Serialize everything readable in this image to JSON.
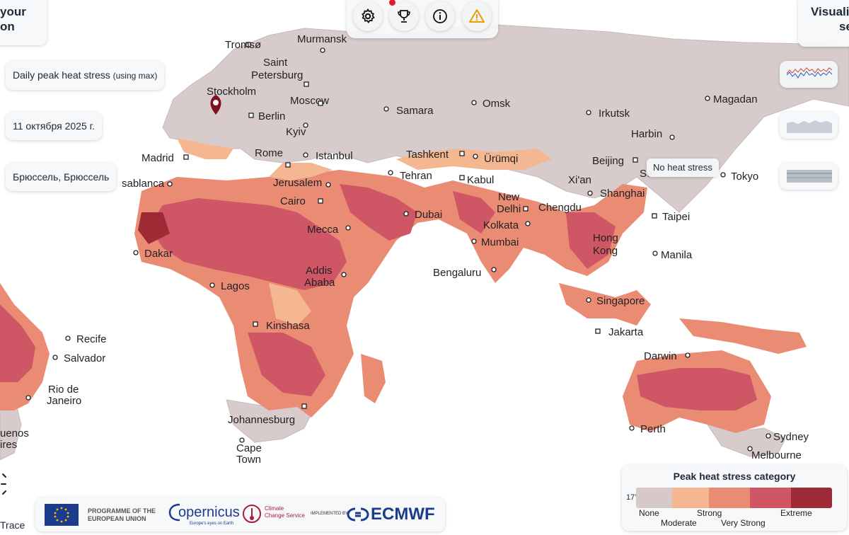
{
  "top_left_card": {
    "line1": "your",
    "line2": "on"
  },
  "top_right_card": {
    "line1": "Visuali",
    "line2": "se"
  },
  "layer_label": "Daily peak heat stress",
  "layer_sub": "(using max)",
  "date": "11 октября 2025 г.",
  "location": "Брюссель, Брюссель",
  "tooltip": "No heat stress",
  "top_buttons": [
    {
      "icon": "gear-icon"
    },
    {
      "icon": "trophy-icon"
    },
    {
      "icon": "info-icon"
    },
    {
      "icon": "warning-icon"
    }
  ],
  "cities": [
    {
      "name": "Tromsø"
    },
    {
      "name": "Murmansk"
    },
    {
      "name": "Saint"
    },
    {
      "name": "Petersburg"
    },
    {
      "name": "Stockholm"
    },
    {
      "name": "Moscow"
    },
    {
      "name": "Berlin"
    },
    {
      "name": "Kyiv"
    },
    {
      "name": "Samara"
    },
    {
      "name": "Omsk"
    },
    {
      "name": "Irkutsk"
    },
    {
      "name": "Magadan"
    },
    {
      "name": "Harbin"
    },
    {
      "name": "Madrid"
    },
    {
      "name": "Rome"
    },
    {
      "name": "Istanbul"
    },
    {
      "name": "Tashkent"
    },
    {
      "name": "Ürümqi"
    },
    {
      "name": "Beijing"
    },
    {
      "name": "Tokyo"
    },
    {
      "name": "Tehran"
    },
    {
      "name": "Kabul"
    },
    {
      "name": "Xi'an"
    },
    {
      "name": "Shanghai"
    },
    {
      "name": "Jerusalem"
    },
    {
      "name": "Cairo"
    },
    {
      "name": "Dubai"
    },
    {
      "name": "New"
    },
    {
      "name": "Delhi"
    },
    {
      "name": "Chengdu"
    },
    {
      "name": "Taipei"
    },
    {
      "name": "Mecca"
    },
    {
      "name": "Kolkata"
    },
    {
      "name": "Mumbai"
    },
    {
      "name": "Hong"
    },
    {
      "name": "Kong"
    },
    {
      "name": "Manila"
    },
    {
      "name": "Dakar"
    },
    {
      "name": "Addis"
    },
    {
      "name": "Ababa"
    },
    {
      "name": "Bengaluru"
    },
    {
      "name": "Lagos"
    },
    {
      "name": "Singapore"
    },
    {
      "name": "Kinshasa"
    },
    {
      "name": "Jakarta"
    },
    {
      "name": "Recife"
    },
    {
      "name": "Salvador"
    },
    {
      "name": "Darwin"
    },
    {
      "name": "Rio de"
    },
    {
      "name": "Janeiro"
    },
    {
      "name": "Johannesburg"
    },
    {
      "name": "Perth"
    },
    {
      "name": "Sydney"
    },
    {
      "name": "Cape"
    },
    {
      "name": "Town"
    },
    {
      "name": "Melbourne"
    },
    {
      "name": "uenos"
    },
    {
      "name": "ires"
    },
    {
      "name": "sablanca"
    },
    {
      "name": "Se"
    }
  ],
  "legend": {
    "title": "Peak heat stress category",
    "min_label": "17°C",
    "categories": [
      {
        "name": "None",
        "color": "#d6c9c8"
      },
      {
        "name": "Moderate",
        "color": "#f5b792"
      },
      {
        "name": "Strong",
        "color": "#ea8b74"
      },
      {
        "name": "Very Strong",
        "color": "#cf5665"
      },
      {
        "name": "Extreme",
        "color": "#9e2a36"
      }
    ]
  },
  "footer": {
    "programme": "PROGRAMME OF THE",
    "union": "EUROPEAN UNION",
    "copernicus": "opernicus",
    "copernicus_tag": "Europe's eyes on Earth",
    "ccs1": "Climate",
    "ccs2": "Change Service",
    "implemented": "IMPLEMENTED BY",
    "ecmwf": "ECMWF"
  },
  "bottom_left_text": "Trace"
}
